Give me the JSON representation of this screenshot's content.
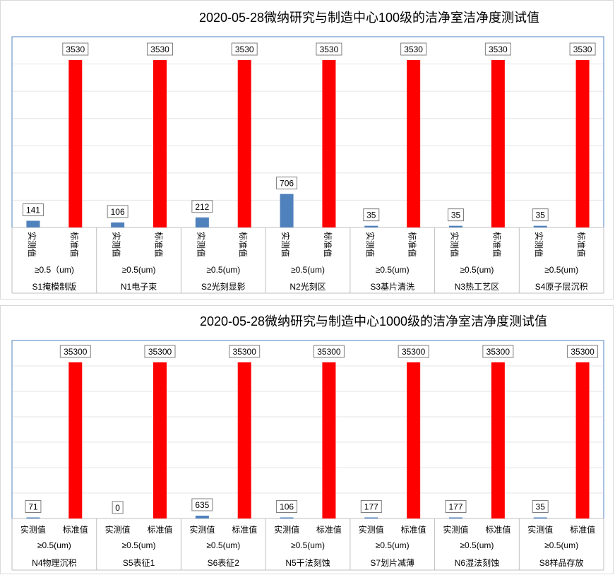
{
  "chart_data": [
    {
      "type": "bar",
      "title": "2020-05-28微纳研究与制造中心100级的洁净室洁净度测试值",
      "ylim": [
        0,
        3530
      ],
      "grid": true,
      "series_labels": [
        "实测值",
        "标准值"
      ],
      "category_labels_vertical": true,
      "particle_size_labels": [
        "≥0.5（um)",
        "≥0.5(um)",
        "≥0.5(um)",
        "≥0.5(um)",
        "≥0.5(um)",
        "≥0.5(um)",
        "≥0.5(um)"
      ],
      "categories": [
        "S1掩模制版",
        "N1电子束",
        "S2光刻显影",
        "N2光刻区",
        "S3基片清洗",
        "N3热工艺区",
        "S4原子层沉积"
      ],
      "series": [
        {
          "values": [
            141,
            106,
            212,
            706,
            35,
            35,
            35
          ],
          "color": "#4f81bd"
        },
        {
          "values": [
            3530,
            3530,
            3530,
            3530,
            3530,
            3530,
            3530
          ],
          "color": "#ff0000"
        }
      ]
    },
    {
      "type": "bar",
      "title": "2020-05-28微纳研究与制造中心1000级的洁净室洁净度测试值",
      "ylim": [
        0,
        35300
      ],
      "grid": true,
      "series_labels": [
        "实测值",
        "标准值"
      ],
      "category_labels_vertical": false,
      "particle_size_labels": [
        "≥0.5(um)",
        "≥0.5(um)",
        "≥0.5(um)",
        "≥0.5(um)",
        "≥0.5(um)",
        "≥0.5(um)",
        "≥0.5(um)"
      ],
      "categories": [
        "N4物理沉积",
        "S5表征1",
        "S6表征2",
        "N5干法刻蚀",
        "S7划片减薄",
        "N6湿法刻蚀",
        "S8样品存放"
      ],
      "series": [
        {
          "values": [
            71,
            0,
            635,
            106,
            177,
            177,
            35
          ],
          "color": "#4f81bd"
        },
        {
          "values": [
            35300,
            35300,
            35300,
            35300,
            35300,
            35300,
            35300
          ],
          "color": "#ff0000"
        }
      ]
    }
  ]
}
